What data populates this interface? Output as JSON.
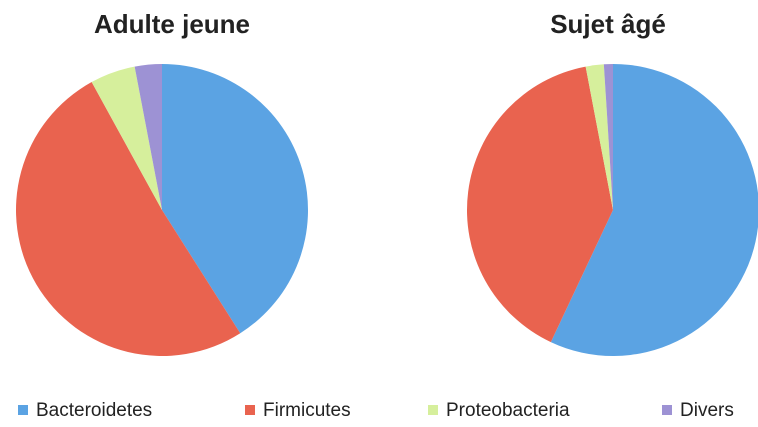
{
  "chart_data": [
    {
      "type": "pie",
      "title": "Adulte jeune",
      "categories": [
        "Bacteroidetes",
        "Firmicutes",
        "Proteobacteria",
        "Divers"
      ],
      "values": [
        41,
        51,
        5,
        3
      ],
      "colors": [
        "#5ba3e3",
        "#e9634f",
        "#d6ef9c",
        "#9d92d4"
      ]
    },
    {
      "type": "pie",
      "title": "Sujet âgé",
      "categories": [
        "Bacteroidetes",
        "Firmicutes",
        "Proteobacteria",
        "Divers"
      ],
      "values": [
        57,
        40,
        2,
        1
      ],
      "colors": [
        "#5ba3e3",
        "#e9634f",
        "#d6ef9c",
        "#9d92d4"
      ]
    }
  ]
}
